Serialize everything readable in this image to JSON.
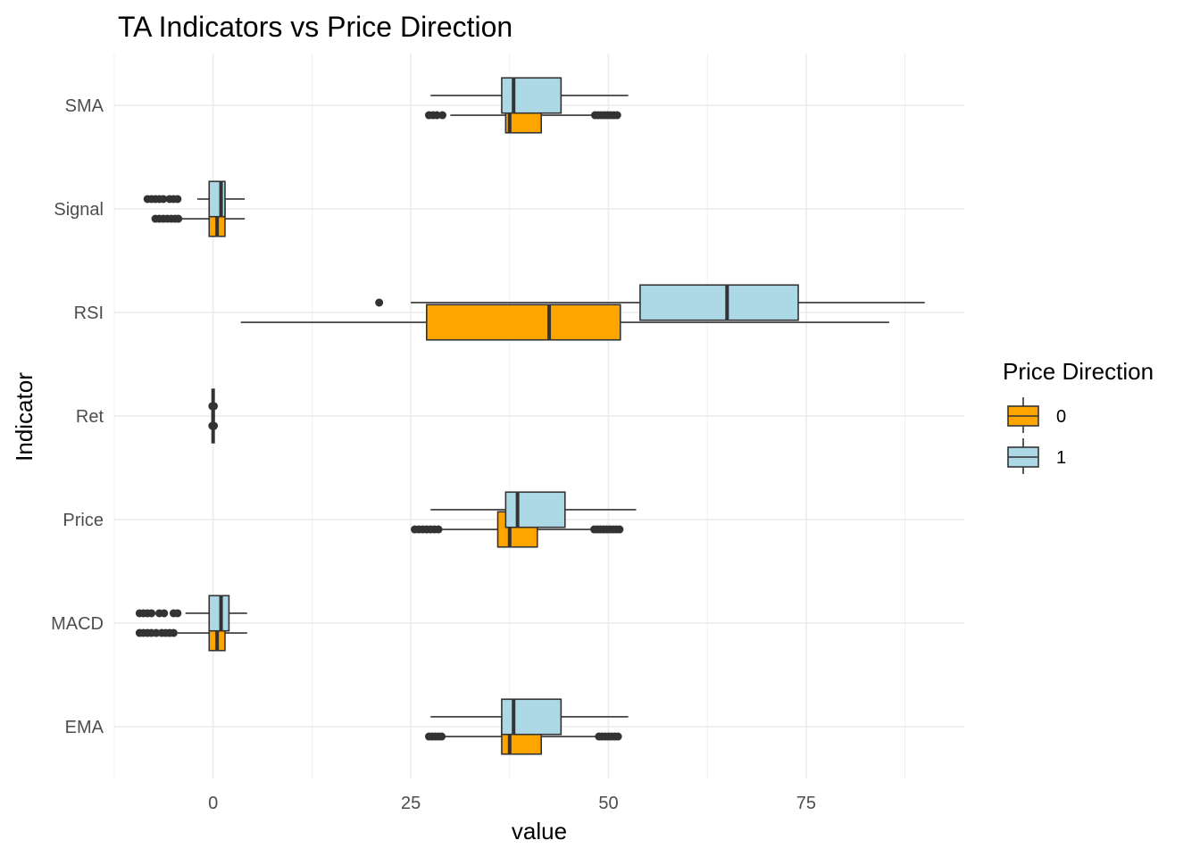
{
  "chart_data": {
    "type": "boxplot",
    "orientation": "horizontal",
    "title": "TA Indicators vs Price Direction",
    "xlabel": "value",
    "ylabel": "Indicator",
    "xlim": [
      -12.5,
      95
    ],
    "xticks": [
      0,
      25,
      50,
      75
    ],
    "grid": true,
    "theme": "minimal",
    "categories": [
      "EMA",
      "MACD",
      "Price",
      "Ret",
      "RSI",
      "Signal",
      "SMA"
    ],
    "legend": {
      "title": "Price Direction",
      "position": "right",
      "entries": [
        {
          "label": "0",
          "color": "#FFA500"
        },
        {
          "label": "1",
          "color": "#ADD8E6"
        }
      ]
    },
    "series": [
      {
        "name": "0",
        "color": "#FFA500",
        "boxes": [
          {
            "category": "EMA",
            "lower_whisker": 27.5,
            "q1": 36.5,
            "median": 37.5,
            "q3": 41.5,
            "upper_whisker": 48.5,
            "outliers": [
              27.3,
              27.7,
              28.1,
              28.5,
              28.9,
              48.8,
              49.2,
              49.6,
              50.0,
              50.4,
              50.8,
              51.2
            ]
          },
          {
            "category": "MACD",
            "lower_whisker": -4.5,
            "q1": -0.5,
            "median": 0.5,
            "q3": 1.5,
            "upper_whisker": 4.3,
            "outliers": [
              -9.3,
              -8.8,
              -8.3,
              -7.8,
              -7.2,
              -6.5,
              -6.0,
              -5.5,
              -5.0
            ]
          },
          {
            "category": "Price",
            "lower_whisker": 29.0,
            "q1": 36.0,
            "median": 37.5,
            "q3": 41.0,
            "upper_whisker": 48.0,
            "outliers": [
              25.5,
              26.0,
              26.5,
              27.0,
              27.5,
              28.0,
              28.5,
              48.2,
              48.6,
              49.0,
              49.4,
              49.8,
              50.2,
              50.6,
              51.0,
              51.4
            ]
          },
          {
            "category": "Ret",
            "lower_whisker": 0.0,
            "q1": 0.0,
            "median": 0.0,
            "q3": 0.0,
            "upper_whisker": 0.0,
            "outliers": [
              -0.1,
              0.0,
              0.1
            ]
          },
          {
            "category": "RSI",
            "lower_whisker": 3.5,
            "q1": 27.0,
            "median": 42.5,
            "q3": 51.5,
            "upper_whisker": 85.5,
            "outliers": []
          },
          {
            "category": "Signal",
            "lower_whisker": -4.0,
            "q1": -0.5,
            "median": 0.5,
            "q3": 1.5,
            "upper_whisker": 4.0,
            "outliers": [
              -7.3,
              -6.8,
              -6.3,
              -5.8,
              -5.3,
              -4.8,
              -4.4
            ]
          },
          {
            "category": "SMA",
            "lower_whisker": 30.0,
            "q1": 37.0,
            "median": 37.5,
            "q3": 41.5,
            "upper_whisker": 48.0,
            "outliers": [
              27.3,
              27.8,
              28.3,
              29.0,
              48.3,
              48.7,
              49.1,
              49.5,
              49.9,
              50.3,
              50.7,
              51.1
            ]
          }
        ]
      },
      {
        "name": "1",
        "color": "#ADD8E6",
        "boxes": [
          {
            "category": "EMA",
            "lower_whisker": 27.5,
            "q1": 36.5,
            "median": 38.0,
            "q3": 44.0,
            "upper_whisker": 52.5,
            "outliers": []
          },
          {
            "category": "MACD",
            "lower_whisker": -3.5,
            "q1": -0.5,
            "median": 1.0,
            "q3": 2.0,
            "upper_whisker": 4.3,
            "outliers": [
              -9.3,
              -8.8,
              -8.3,
              -7.8,
              -6.8,
              -6.2,
              -5.0,
              -4.5
            ]
          },
          {
            "category": "Price",
            "lower_whisker": 27.5,
            "q1": 37.0,
            "median": 38.5,
            "q3": 44.5,
            "upper_whisker": 53.5,
            "outliers": []
          },
          {
            "category": "Ret",
            "lower_whisker": 0.0,
            "q1": 0.0,
            "median": 0.0,
            "q3": 0.0,
            "upper_whisker": 0.0,
            "outliers": [
              -0.1,
              0.0,
              0.1
            ]
          },
          {
            "category": "RSI",
            "lower_whisker": 25.0,
            "q1": 54.0,
            "median": 65.0,
            "q3": 74.0,
            "upper_whisker": 90.0,
            "outliers": [
              21.0
            ]
          },
          {
            "category": "Signal",
            "lower_whisker": -2.0,
            "q1": -0.5,
            "median": 1.0,
            "q3": 1.5,
            "upper_whisker": 4.0,
            "outliers": [
              -8.3,
              -7.8,
              -7.3,
              -6.8,
              -6.3,
              -5.5,
              -5.0,
              -4.5
            ]
          },
          {
            "category": "SMA",
            "lower_whisker": 27.5,
            "q1": 36.5,
            "median": 38.0,
            "q3": 44.0,
            "upper_whisker": 52.5,
            "outliers": []
          }
        ]
      }
    ]
  }
}
